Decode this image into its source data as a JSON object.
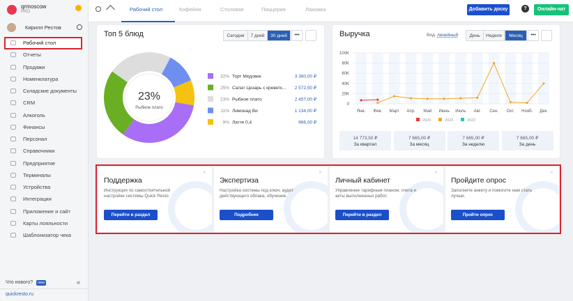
{
  "sidebar": {
    "brand": "qrmoscow",
    "plan": "PRO",
    "user": "Кирилл Рестов",
    "menu": [
      "Рабочий стол",
      "Отчеты",
      "Продажи",
      "Номенклатура",
      "Складские документы",
      "CRM",
      "Алкоголь",
      "Финансы",
      "Персонал",
      "Справочники",
      "Предприятие",
      "Терминалы",
      "Устройства",
      "Интеграции",
      "Приложение и сайт",
      "Карты лояльности",
      "Шаблонизатор чека"
    ],
    "whats_new": "Что нового?",
    "badge": "new",
    "site": "quickresto.ru"
  },
  "topbar": {
    "tabs": [
      "Рабочий стол",
      "Кофейня",
      "Столовая",
      "Пиццерия",
      "Лакомка"
    ],
    "add_board": "Добавить доску",
    "help": "?",
    "chat": "Онлайн-чат"
  },
  "top5": {
    "periods": [
      "Сегодня",
      "7 дней",
      "30 дней"
    ],
    "amounts": [
      3360,
      2572.5,
      2457,
      1134,
      966
    ],
    "amount_labels": [
      "3 360,00 ₽",
      "2 572,50 ₽",
      "2 457,00 ₽",
      "1 134,00 ₽",
      "966,00 ₽"
    ]
  },
  "revenue": {
    "view_label": "Вид:",
    "view": "линейный",
    "periods": [
      "День",
      "Неделя",
      "Месяц"
    ],
    "stats": [
      {
        "amount": "14 773,50 ₽",
        "period": "За квартал"
      },
      {
        "amount": "7 665,00 ₽",
        "period": "За месяц"
      },
      {
        "amount": "7 665,00 ₽",
        "period": "За неделю"
      },
      {
        "amount": "7 665,00 ₽",
        "period": "За день"
      }
    ]
  },
  "chart_data": [
    {
      "type": "pie",
      "title": "Топ 5 блюд",
      "categories": [
        "Торт Медовик",
        "Салат Цезарь с креветк...",
        "Рыбное плато",
        "Лимонад Ви",
        "Латте 0,4"
      ],
      "values": [
        32,
        25,
        23,
        11,
        9
      ],
      "value_labels": [
        "32%",
        "25%",
        "23%",
        "11%",
        "9%"
      ],
      "colors": [
        "#a86ef5",
        "#6aaf23",
        "#dddddd",
        "#6f8ff0",
        "#f5c211"
      ],
      "center_index": 2
    },
    {
      "type": "line",
      "title": "Выручка",
      "categories": [
        "Янв.",
        "Фев.",
        "Март",
        "Апр.",
        "Май",
        "Июнь",
        "Июль",
        "Авг.",
        "Сен.",
        "Окт.",
        "Нояб.",
        "Дек."
      ],
      "ylim": [
        0,
        100000
      ],
      "yticks": [
        0,
        {
          "value": 20000,
          "label": "20K"
        },
        {
          "value": 40000,
          "label": "40K"
        },
        {
          "value": 60000,
          "label": "60K"
        },
        {
          "value": 80000,
          "label": "80K"
        },
        {
          "value": 100000,
          "label": "100K"
        }
      ],
      "series": [
        {
          "name": "2024",
          "color": "#e53935",
          "values": [
            7000,
            8000,
            null,
            null,
            null,
            null,
            null,
            null,
            null,
            null,
            null,
            null
          ]
        },
        {
          "name": "2023",
          "color": "#f5a623",
          "values": [
            null,
            2000,
            15000,
            11000,
            10000,
            10000,
            11000,
            12000,
            80000,
            3000,
            2000,
            40000
          ]
        },
        {
          "name": "2022",
          "color": "#2ec4b6",
          "values": [
            null,
            null,
            null,
            null,
            null,
            null,
            null,
            null,
            null,
            null,
            null,
            null
          ]
        }
      ]
    }
  ],
  "promos": [
    {
      "title": "Поддержка",
      "text": "Инструкция по самостоятельной настройке системы Quick Resto.",
      "button": "Перейти в раздел"
    },
    {
      "title": "Экспертиза",
      "text": "Настройка системы под ключ, аудит действующего облака, обучение.",
      "button": "Подробнее"
    },
    {
      "title": "Личный кабинет",
      "text": "Управление тарифным планом, счета и акты выполненных работ.",
      "button": "Перейти в раздел"
    },
    {
      "title": "Пройдите опрос",
      "text": "Заполните анкету и помогите нам стать лучше.",
      "button": "Пройти опрос"
    }
  ]
}
